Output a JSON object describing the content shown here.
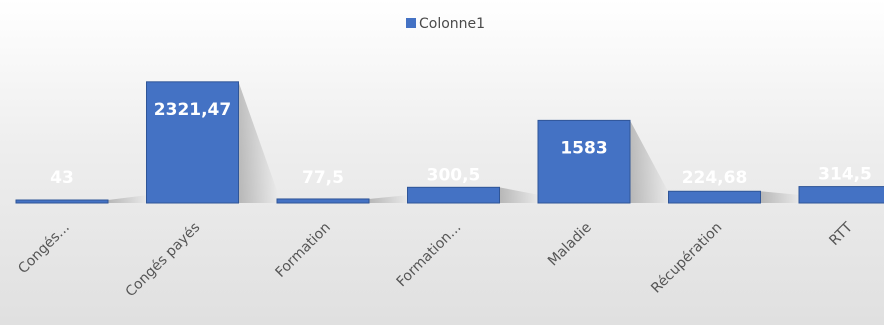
{
  "chart_data": {
    "type": "bar",
    "categories": [
      "Congés...",
      "Congés payés",
      "Formation",
      "Formation...",
      "Maladie",
      "Récupération",
      "RTT"
    ],
    "series": [
      {
        "name": "Colonne1",
        "values": [
          43,
          2321.47,
          77.5,
          300.5,
          1583,
          224.68,
          314.5
        ]
      }
    ],
    "data_labels": [
      "43",
      "2321,47",
      "77,5",
      "300,5",
      "1583",
      "224,68",
      "314,5"
    ],
    "legend_position": "top",
    "grid": false,
    "colors": {
      "bar": "#4472c4",
      "bar_edge": "#2f5597",
      "label": "#ffffff"
    }
  }
}
